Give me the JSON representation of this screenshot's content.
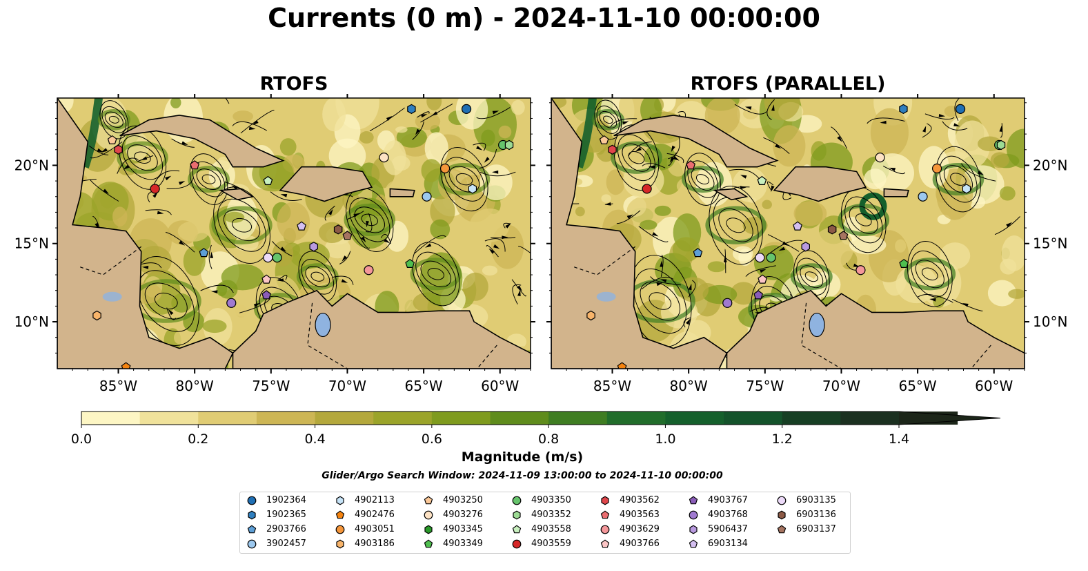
{
  "title": "Currents (0 m) - 2024-11-10 00:00:00",
  "panels": [
    {
      "title": "RTOFS"
    },
    {
      "title": "RTOFS (PARALLEL)"
    }
  ],
  "axes": {
    "lon_ticks": [
      "85°W",
      "80°W",
      "75°W",
      "70°W",
      "65°W",
      "60°W"
    ],
    "lat_ticks": [
      "20°N",
      "15°N",
      "10°N"
    ]
  },
  "colorbar": {
    "label": "Magnitude (m/s)",
    "ticks": [
      "0.0",
      "0.2",
      "0.4",
      "0.6",
      "0.8",
      "1.0",
      "1.2",
      "1.4"
    ],
    "colors": [
      "#fdf6c4",
      "#f0e29b",
      "#e0cc74",
      "#cdb655",
      "#b4a83c",
      "#9ba42a",
      "#7f9b1e",
      "#5f8c1c",
      "#3f7d22",
      "#216d2b",
      "#15602c",
      "#14532b",
      "#173f24",
      "#1b3020",
      "#1c2619"
    ]
  },
  "search_window": "Glider/Argo Search Window: 2024-11-09 13:00:00 to 2024-11-10 00:00:00",
  "legend": [
    {
      "id": "1902364",
      "shape": "circle",
      "color": "#1f6fb4"
    },
    {
      "id": "1902365",
      "shape": "hexagon",
      "color": "#2f7fbf"
    },
    {
      "id": "2903766",
      "shape": "pentagon",
      "color": "#5d9fd6"
    },
    {
      "id": "3902457",
      "shape": "circle",
      "color": "#9cc8ee"
    },
    {
      "id": "4902113",
      "shape": "hexagon",
      "color": "#c7e4f8"
    },
    {
      "id": "4902476",
      "shape": "pentagon",
      "color": "#f5830f"
    },
    {
      "id": "4903051",
      "shape": "circle",
      "color": "#f5963a"
    },
    {
      "id": "4903186",
      "shape": "hexagon",
      "color": "#f8b46a"
    },
    {
      "id": "4903250",
      "shape": "pentagon",
      "color": "#fbc898"
    },
    {
      "id": "4903276",
      "shape": "circle",
      "color": "#fde2c4"
    },
    {
      "id": "4903345",
      "shape": "hexagon",
      "color": "#2a9a2a"
    },
    {
      "id": "4903349",
      "shape": "pentagon",
      "color": "#4fbf4f"
    },
    {
      "id": "4903350",
      "shape": "circle",
      "color": "#66c46c"
    },
    {
      "id": "4903352",
      "shape": "hexagon",
      "color": "#9ddb94"
    },
    {
      "id": "4903558",
      "shape": "pentagon",
      "color": "#c8f0bf"
    },
    {
      "id": "4903559",
      "shape": "circle",
      "color": "#d62728"
    },
    {
      "id": "4903562",
      "shape": "hexagon",
      "color": "#e0464b"
    },
    {
      "id": "4903563",
      "shape": "pentagon",
      "color": "#ea6d70"
    },
    {
      "id": "4903629",
      "shape": "circle",
      "color": "#f4979a"
    },
    {
      "id": "4903766",
      "shape": "pentagon",
      "color": "#fbc5c5"
    },
    {
      "id": "4903767",
      "shape": "pentagon",
      "color": "#8a5cb8"
    },
    {
      "id": "4903768",
      "shape": "circle",
      "color": "#a07ad0"
    },
    {
      "id": "5906437",
      "shape": "hexagon",
      "color": "#b99ae0"
    },
    {
      "id": "6903134",
      "shape": "pentagon",
      "color": "#d4bff0"
    },
    {
      "id": "6903135",
      "shape": "circle",
      "color": "#ecdaf8"
    },
    {
      "id": "6903136",
      "shape": "hexagon",
      "color": "#8c5a46"
    },
    {
      "id": "6903137",
      "shape": "pentagon",
      "color": "#a67461"
    }
  ]
}
